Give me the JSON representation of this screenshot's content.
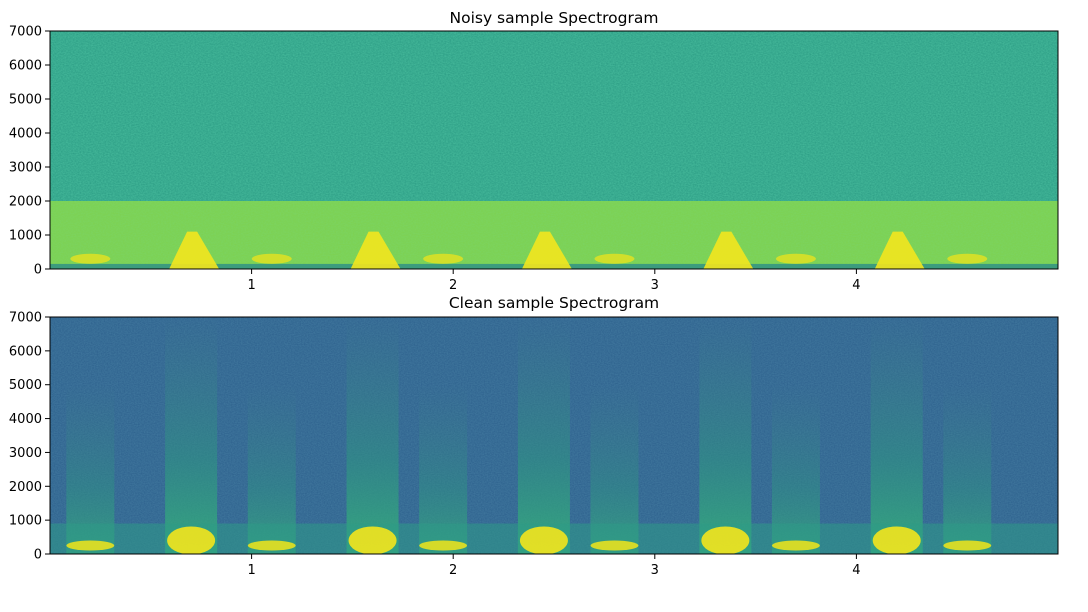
{
  "chart_data": [
    {
      "type": "heatmap",
      "title": "Noisy sample Spectrogram",
      "xlabel": "",
      "ylabel": "",
      "xlim": [
        0,
        5
      ],
      "ylim": [
        0,
        7000
      ],
      "x_ticks": [
        1,
        2,
        3,
        4
      ],
      "y_ticks": [
        0,
        1000,
        2000,
        3000,
        4000,
        5000,
        6000,
        7000
      ],
      "colormap": "viridis",
      "grid": false,
      "description_values": {
        "noise_band_upper_hz": 2000,
        "event_times_s": [
          0.7,
          1.6,
          2.45,
          3.35,
          4.2
        ]
      }
    },
    {
      "type": "heatmap",
      "title": "Clean sample Spectrogram",
      "xlabel": "",
      "ylabel": "",
      "xlim": [
        0,
        5
      ],
      "ylim": [
        0,
        7000
      ],
      "x_ticks": [
        1,
        2,
        3,
        4
      ],
      "y_ticks": [
        0,
        1000,
        2000,
        3000,
        4000,
        5000,
        6000,
        7000
      ],
      "colormap": "viridis",
      "grid": false,
      "description_values": {
        "event_times_s": [
          0.7,
          1.6,
          2.45,
          3.35,
          4.2
        ],
        "minor_event_times_s": [
          0.2,
          1.1,
          1.95,
          2.8,
          3.7,
          4.55
        ]
      }
    }
  ]
}
